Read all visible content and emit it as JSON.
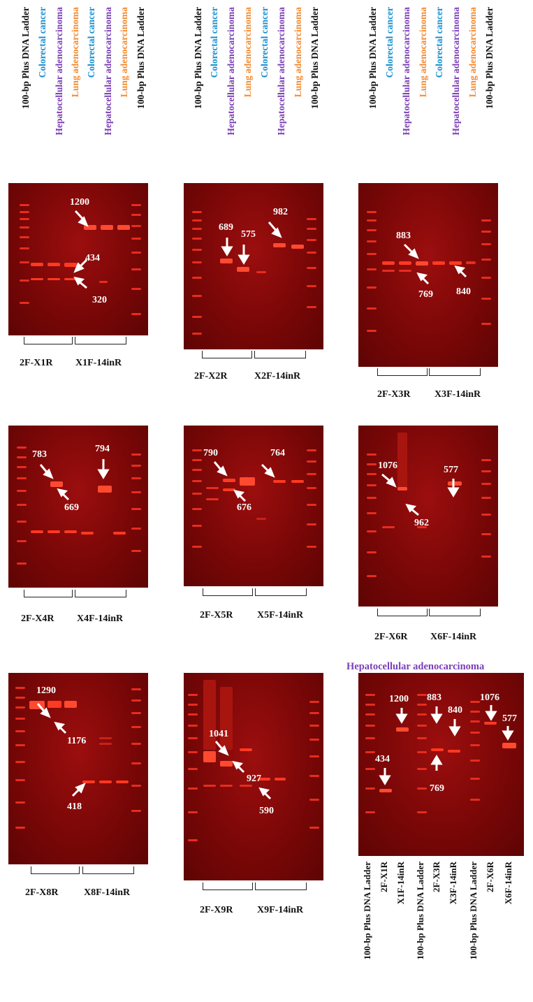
{
  "colors": {
    "ladder": "#111111",
    "colorectal": "#1a8fcf",
    "hepatocellular": "#7b3fb6",
    "lung": "#f28a30",
    "gel_background": "#7a0606",
    "band": "#ff3a22",
    "annotation": "#ffffff"
  },
  "lane_labels": {
    "ladder": "100-bp Plus DNA Ladder",
    "colorectal": "Colorectal cancer",
    "hepatocellular": "Hepatocellular adenocarcinoma",
    "lung": "Lung adenocarcinoma"
  },
  "panels": [
    {
      "id": "X1",
      "left_group": "2F-X1R",
      "right_group": "X1F-14inR",
      "annotations": [
        "1200",
        "434",
        "320"
      ]
    },
    {
      "id": "X2",
      "left_group": "2F-X2R",
      "right_group": "X2F-14inR",
      "annotations": [
        "689",
        "575",
        "982"
      ]
    },
    {
      "id": "X3",
      "left_group": "2F-X3R",
      "right_group": "X3F-14inR",
      "annotations": [
        "883",
        "769",
        "840"
      ]
    },
    {
      "id": "X4",
      "left_group": "2F-X4R",
      "right_group": "X4F-14inR",
      "annotations": [
        "783",
        "669",
        "794"
      ]
    },
    {
      "id": "X5",
      "left_group": "2F-X5R",
      "right_group": "X5F-14inR",
      "annotations": [
        "790",
        "676",
        "764"
      ]
    },
    {
      "id": "X6",
      "left_group": "2F-X6R",
      "right_group": "X6F-14inR",
      "annotations": [
        "1076",
        "962",
        "577"
      ]
    },
    {
      "id": "X8",
      "left_group": "2F-X8R",
      "right_group": "X8F-14inR",
      "annotations": [
        "1290",
        "1176",
        "418"
      ]
    },
    {
      "id": "X9",
      "left_group": "2F-X9R",
      "right_group": "X9F-14inR",
      "annotations": [
        "1041",
        "927",
        "590"
      ]
    }
  ],
  "summary_panel": {
    "title": "Hepatocellular adenocarcinoma",
    "lanes": [
      "100-bp Plus DNA Ladder",
      "2F-X1R",
      "X1F-14inR",
      "100-bp Plus DNA Ladder",
      "2F-X3R",
      "X3F-14inR",
      "100-bp Plus DNA Ladder",
      "2F-X6R",
      "X6F-14inR"
    ],
    "annotations": [
      "434",
      "1200",
      "883",
      "769",
      "840",
      "1076",
      "577"
    ]
  }
}
